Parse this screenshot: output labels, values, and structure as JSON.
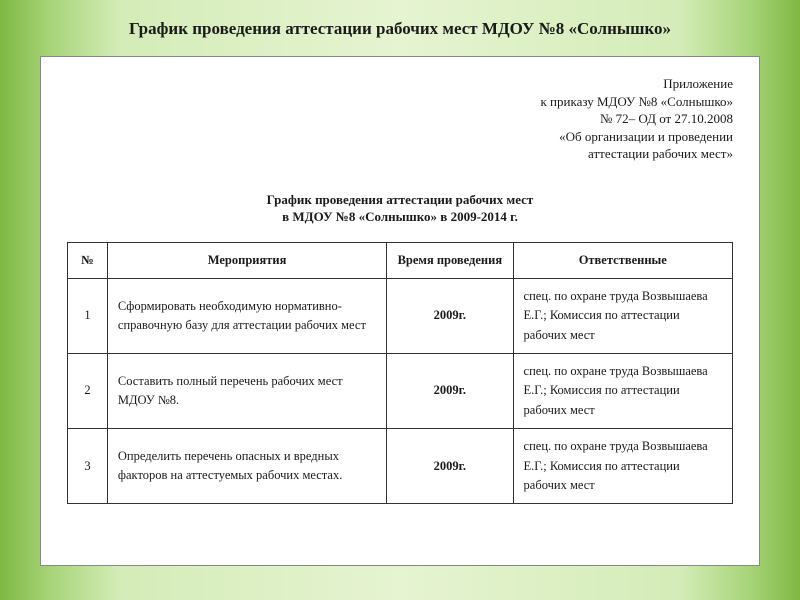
{
  "slide_title": "График проведения аттестации рабочих мест МДОУ №8 «Солнышко»",
  "appendix": {
    "l1": "Приложение",
    "l2": "к приказу МДОУ №8 «Солнышко»",
    "l3": "№ 72– ОД от  27.10.2008",
    "l4": "«Об организации и проведении",
    "l5": "аттестации рабочих мест»"
  },
  "doc_heading": {
    "l1": "График  проведения  аттестации рабочих мест",
    "l2": "в МДОУ №8 «Солнышко» в 2009-2014 г."
  },
  "columns": {
    "n": "№",
    "activity": "Мероприятия",
    "time": "Время проведения",
    "responsible": "Ответственные"
  },
  "rows": [
    {
      "n": "1",
      "activity": "Сформировать необходимую нормативно-справочную базу для аттестации рабочих мест",
      "time": "2009г.",
      "responsible": "спец. по охране труда Возвышаева Е.Г.; Комиссия по аттестации рабочих мест"
    },
    {
      "n": "2",
      "activity": "Составить полный перечень рабочих мест МДОУ №8.",
      "time": "2009г.",
      "responsible": "спец. по охране труда Возвышаева Е.Г.; Комиссия по аттестации рабочих мест"
    },
    {
      "n": "3",
      "activity": "Определить перечень опасных и вредных факторов на аттестуемых рабочих местах.",
      "time": "2009г.",
      "responsible": "спец. по охране труда Возвышаева Е.Г.; Комиссия по аттестации рабочих мест"
    }
  ],
  "colors": {
    "year": "#c77a1f",
    "text": "#1a1a1a",
    "border": "#333333",
    "doc_bg": "#ffffff"
  }
}
